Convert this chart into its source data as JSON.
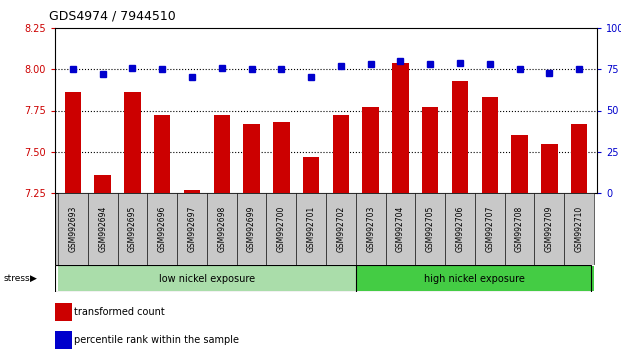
{
  "title": "GDS4974 / 7944510",
  "samples": [
    "GSM992693",
    "GSM992694",
    "GSM992695",
    "GSM992696",
    "GSM992697",
    "GSM992698",
    "GSM992699",
    "GSM992700",
    "GSM992701",
    "GSM992702",
    "GSM992703",
    "GSM992704",
    "GSM992705",
    "GSM992706",
    "GSM992707",
    "GSM992708",
    "GSM992709",
    "GSM992710"
  ],
  "red_values": [
    7.86,
    7.36,
    7.86,
    7.72,
    7.27,
    7.72,
    7.67,
    7.68,
    7.47,
    7.72,
    7.77,
    8.04,
    7.77,
    7.93,
    7.83,
    7.6,
    7.55,
    7.67
  ],
  "blue_values": [
    75,
    72,
    76,
    75,
    70,
    76,
    75,
    75,
    70,
    77,
    78,
    80,
    78,
    79,
    78,
    75,
    73,
    75
  ],
  "ylim_left": [
    7.25,
    8.25
  ],
  "ylim_right": [
    0,
    100
  ],
  "yticks_left": [
    7.25,
    7.5,
    7.75,
    8.0,
    8.25
  ],
  "yticks_right": [
    0,
    25,
    50,
    75,
    100
  ],
  "bar_color": "#CC0000",
  "dot_color": "#0000CC",
  "group1_label": "low nickel exposure",
  "group2_label": "high nickel exposure",
  "group1_count": 10,
  "group1_color": "#AADDAA",
  "group2_color": "#44CC44",
  "stress_label": "stress",
  "legend1": "transformed count",
  "legend2": "percentile rank within the sample",
  "dotted_line_color": "#444444",
  "tick_label_bg": "#C8C8C8",
  "title_fontsize": 9,
  "bar_baseline": 7.25
}
